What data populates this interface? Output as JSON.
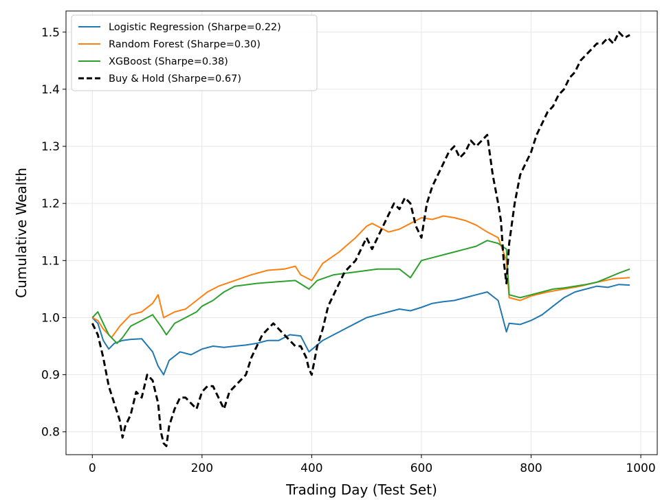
{
  "chart_data": {
    "type": "line",
    "title": "",
    "xlabel": "Trading Day (Test Set)",
    "ylabel": "Cumulative Wealth",
    "xlim": [
      -48,
      1030
    ],
    "ylim": [
      0.76,
      1.537
    ],
    "xticks": [
      0,
      200,
      400,
      600,
      800,
      1000
    ],
    "yticks": [
      0.8,
      0.9,
      1.0,
      1.1,
      1.2,
      1.3,
      1.4,
      1.5
    ],
    "xtick_labels": [
      "0",
      "200",
      "400",
      "600",
      "800",
      "1000"
    ],
    "ytick_labels": [
      "0.8",
      "0.9",
      "1.0",
      "1.1",
      "1.2",
      "1.3",
      "1.4",
      "1.5"
    ],
    "grid": true,
    "legend_position": "top-left",
    "series": [
      {
        "name": "Logistic Regression (Sharpe=0.22)",
        "color": "#1f77b4",
        "dashed": false,
        "x": [
          0,
          10,
          20,
          30,
          40,
          55,
          70,
          90,
          110,
          120,
          130,
          140,
          160,
          180,
          200,
          220,
          240,
          260,
          280,
          300,
          320,
          340,
          360,
          380,
          395,
          420,
          450,
          480,
          500,
          520,
          540,
          560,
          580,
          600,
          620,
          640,
          660,
          680,
          700,
          720,
          740,
          755,
          760,
          780,
          800,
          820,
          840,
          860,
          880,
          900,
          920,
          940,
          960,
          980
        ],
        "y": [
          1.0,
          0.99,
          0.96,
          0.945,
          0.955,
          0.96,
          0.962,
          0.963,
          0.94,
          0.915,
          0.9,
          0.925,
          0.94,
          0.935,
          0.945,
          0.95,
          0.948,
          0.95,
          0.952,
          0.955,
          0.96,
          0.96,
          0.97,
          0.968,
          0.94,
          0.96,
          0.975,
          0.99,
          1.0,
          1.005,
          1.01,
          1.015,
          1.012,
          1.018,
          1.025,
          1.028,
          1.03,
          1.035,
          1.04,
          1.045,
          1.03,
          0.975,
          0.99,
          0.988,
          0.995,
          1.005,
          1.02,
          1.035,
          1.045,
          1.05,
          1.055,
          1.053,
          1.058,
          1.057
        ]
      },
      {
        "name": "Random Forest (Sharpe=0.30)",
        "color": "#ff7f0e",
        "dashed": false,
        "x": [
          0,
          10,
          20,
          35,
          50,
          70,
          90,
          110,
          120,
          130,
          150,
          170,
          190,
          210,
          230,
          260,
          290,
          320,
          350,
          370,
          380,
          400,
          420,
          450,
          480,
          500,
          510,
          520,
          540,
          560,
          580,
          600,
          620,
          640,
          660,
          680,
          700,
          720,
          740,
          755,
          760,
          780,
          800,
          830,
          860,
          890,
          920,
          950,
          980
        ],
        "y": [
          1.0,
          0.995,
          0.98,
          0.965,
          0.985,
          1.005,
          1.01,
          1.025,
          1.04,
          1.0,
          1.01,
          1.015,
          1.03,
          1.045,
          1.055,
          1.065,
          1.075,
          1.083,
          1.085,
          1.09,
          1.075,
          1.065,
          1.095,
          1.115,
          1.14,
          1.16,
          1.165,
          1.16,
          1.15,
          1.155,
          1.165,
          1.175,
          1.172,
          1.178,
          1.175,
          1.17,
          1.162,
          1.15,
          1.14,
          1.1,
          1.035,
          1.03,
          1.038,
          1.045,
          1.05,
          1.055,
          1.062,
          1.068,
          1.07
        ]
      },
      {
        "name": "XGBoost (Sharpe=0.38)",
        "color": "#2ca02c",
        "dashed": false,
        "x": [
          0,
          10,
          20,
          30,
          45,
          55,
          70,
          90,
          110,
          125,
          135,
          150,
          170,
          190,
          200,
          220,
          240,
          260,
          300,
          340,
          370,
          395,
          410,
          440,
          480,
          520,
          560,
          580,
          590,
          600,
          620,
          640,
          660,
          680,
          700,
          720,
          740,
          755,
          760,
          780,
          800,
          820,
          840,
          860,
          880,
          900,
          920,
          940,
          960,
          980
        ],
        "y": [
          1.0,
          1.01,
          0.99,
          0.97,
          0.955,
          0.965,
          0.985,
          0.995,
          1.005,
          0.985,
          0.97,
          0.99,
          1.0,
          1.01,
          1.02,
          1.03,
          1.045,
          1.055,
          1.06,
          1.063,
          1.065,
          1.05,
          1.065,
          1.075,
          1.08,
          1.085,
          1.085,
          1.07,
          1.085,
          1.1,
          1.105,
          1.11,
          1.115,
          1.12,
          1.125,
          1.135,
          1.13,
          1.12,
          1.04,
          1.035,
          1.04,
          1.045,
          1.05,
          1.052,
          1.055,
          1.058,
          1.062,
          1.07,
          1.078,
          1.085
        ]
      },
      {
        "name": "Buy & Hold (Sharpe=0.67)",
        "color": "#000000",
        "dashed": true,
        "x": [
          0,
          10,
          20,
          30,
          40,
          50,
          55,
          60,
          70,
          80,
          90,
          100,
          110,
          120,
          125,
          130,
          135,
          140,
          150,
          160,
          170,
          180,
          190,
          200,
          210,
          220,
          230,
          240,
          250,
          260,
          270,
          280,
          290,
          300,
          310,
          320,
          330,
          340,
          350,
          360,
          370,
          380,
          390,
          395,
          400,
          410,
          420,
          430,
          440,
          450,
          460,
          470,
          480,
          490,
          500,
          510,
          520,
          530,
          540,
          550,
          560,
          570,
          580,
          590,
          600,
          610,
          620,
          630,
          640,
          650,
          660,
          670,
          680,
          690,
          700,
          710,
          720,
          730,
          740,
          745,
          750,
          755,
          760,
          770,
          780,
          790,
          800,
          810,
          820,
          830,
          840,
          850,
          860,
          870,
          880,
          890,
          900,
          910,
          920,
          930,
          940,
          950,
          960,
          970,
          980
        ],
        "y": [
          0.99,
          0.97,
          0.93,
          0.88,
          0.85,
          0.82,
          0.79,
          0.81,
          0.83,
          0.87,
          0.86,
          0.9,
          0.89,
          0.85,
          0.8,
          0.78,
          0.775,
          0.81,
          0.84,
          0.86,
          0.86,
          0.85,
          0.84,
          0.87,
          0.88,
          0.88,
          0.86,
          0.84,
          0.87,
          0.88,
          0.89,
          0.9,
          0.93,
          0.95,
          0.97,
          0.98,
          0.99,
          0.98,
          0.97,
          0.96,
          0.95,
          0.95,
          0.93,
          0.91,
          0.9,
          0.95,
          0.98,
          1.02,
          1.04,
          1.06,
          1.08,
          1.09,
          1.1,
          1.12,
          1.14,
          1.12,
          1.14,
          1.16,
          1.18,
          1.2,
          1.19,
          1.21,
          1.2,
          1.16,
          1.14,
          1.2,
          1.23,
          1.25,
          1.27,
          1.29,
          1.3,
          1.28,
          1.29,
          1.31,
          1.3,
          1.31,
          1.32,
          1.25,
          1.2,
          1.17,
          1.1,
          1.06,
          1.13,
          1.2,
          1.25,
          1.27,
          1.29,
          1.32,
          1.34,
          1.36,
          1.37,
          1.39,
          1.4,
          1.42,
          1.43,
          1.45,
          1.46,
          1.47,
          1.48,
          1.48,
          1.49,
          1.48,
          1.5,
          1.49,
          1.495
        ]
      }
    ]
  }
}
